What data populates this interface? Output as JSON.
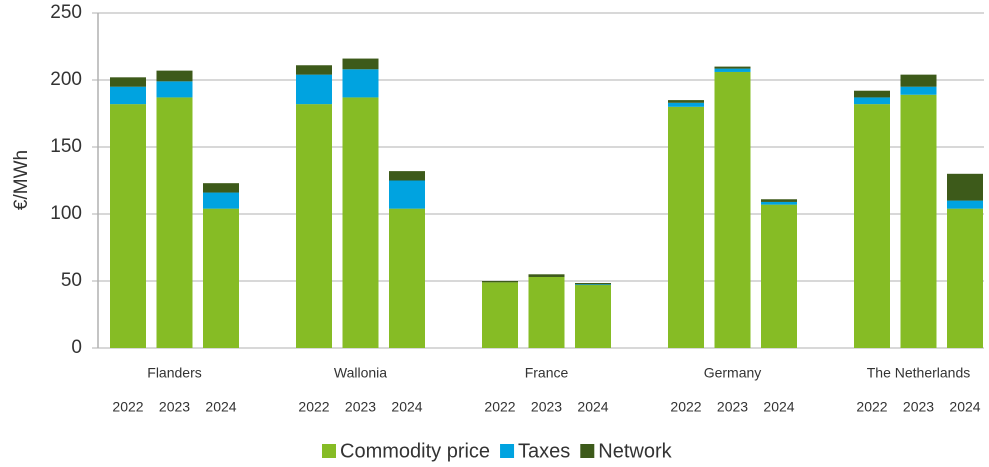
{
  "chart_data": {
    "type": "stacked-bar",
    "y_label": "€/MWh",
    "groups": [
      "Flanders",
      "Wallonia",
      "France",
      "Germany",
      "The Netherlands"
    ],
    "categories": [
      "2022",
      "2023",
      "2024",
      "2022",
      "2023",
      "2024",
      "2022",
      "2023",
      "2024",
      "2022",
      "2023",
      "2024",
      "2022",
      "2023",
      "2024"
    ],
    "series": [
      {
        "name": "Commodity price",
        "color": "#86bc25",
        "values": [
          182,
          187,
          104,
          182,
          187,
          104,
          49,
          53,
          47,
          180,
          206,
          107,
          182,
          189,
          104
        ]
      },
      {
        "name": "Taxes",
        "color": "#00a3e0",
        "values": [
          13,
          12,
          12,
          22,
          21,
          21,
          0,
          0,
          0.5,
          3,
          2.5,
          2,
          5,
          6,
          6
        ]
      },
      {
        "name": "Network",
        "color": "#3d5a1a",
        "values": [
          7,
          8,
          7,
          7,
          8,
          7,
          1,
          2,
          1,
          2,
          1.5,
          2,
          5,
          9,
          20
        ]
      }
    ],
    "ylim": [
      0,
      250
    ],
    "yticks": [
      0,
      50,
      100,
      150,
      200,
      250
    ],
    "grid": true
  }
}
